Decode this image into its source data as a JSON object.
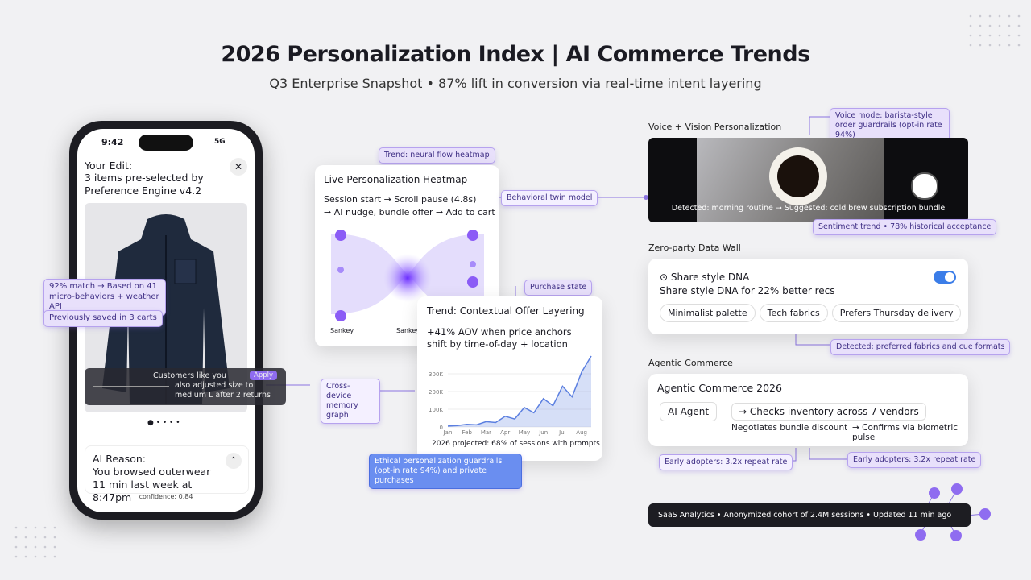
{
  "header": {
    "title": "2026 Personalization Index | AI Commerce Trends",
    "subtitle": "Q3 Enterprise Snapshot • 87% lift in conversion via real-time intent layering"
  },
  "phone": {
    "time": "9:42",
    "network": "5G",
    "edit_title": "Your Edit:",
    "edit_text": "3 items pre-selected by Preference Engine v4.2",
    "match_tag": "92% match → Based on 41 micro-behaviors + weather API",
    "saved_tag": "Previously saved in 3 carts",
    "social_title": "Customers like you",
    "social_text": "also adjusted size to medium L after 2 returns",
    "social_action": "Apply",
    "reason_title": "AI Reason:",
    "reason_text": "You browsed outerwear 11 min last week at 8:47pm",
    "footer": "confidence: 0.84"
  },
  "heatmap": {
    "tag": "Trend: neural flow heatmap",
    "title": "Live Personalization Heatmap",
    "flow_1": "Session start → Scroll pause (4.8s)",
    "flow_2": "→ AI nudge, bundle offer → Add to cart",
    "labels": [
      "Sankey",
      "Sankey"
    ],
    "side_label": "Behavioral twin model"
  },
  "trend": {
    "tag": "Purchase state",
    "title": "Trend: Contextual Offer Layering",
    "text": "+41% AOV when price anchors shift by time-of-day + location",
    "footer": "2026 projected: 68% of sessions with prompts",
    "chart_data": {
      "type": "line",
      "categories": [
        "Jan",
        null,
        "Feb",
        null,
        "Mar",
        null,
        "Apr",
        null,
        "May",
        null,
        "Jun",
        null,
        "Jul",
        null,
        "Aug",
        null
      ],
      "values": [
        5000,
        8000,
        15000,
        12000,
        30000,
        25000,
        60000,
        45000,
        110000,
        80000,
        160000,
        120000,
        230000,
        170000,
        310000,
        400000
      ],
      "color": "#5b7fe0",
      "ylim": [
        0,
        400000
      ],
      "yticks": [
        0,
        {
          "value": 100000,
          "label": "100K"
        },
        {
          "value": 200000,
          "label": "200K"
        },
        {
          "value": 300000,
          "label": "300K"
        }
      ]
    }
  },
  "cross_device": "Cross-device memory graph",
  "ethical": "Ethical personalization guardrails (opt-in rate 94%) and private purchases",
  "voice": {
    "label": "Voice + Vision Personalization",
    "tag": "Voice mode: barista-style order guardrails (opt-in rate 94%)",
    "caption": "Detected: morning routine → Suggested: cold brew subscription bundle",
    "trend_tag": "Sentiment trend • 78% historical acceptance"
  },
  "zero_party": {
    "label": "Zero-party Data Wall",
    "toggle_title": "Share style DNA",
    "toggle_text": "Share style DNA for 22% better recs",
    "chips": [
      "Minimalist palette",
      "Tech fabrics",
      "Prefers Thursday delivery"
    ],
    "tag": "Detected: preferred fabrics and cue formats"
  },
  "agentic": {
    "label": "Agentic Commerce",
    "title": "Agentic Commerce 2026",
    "agent": "AI Agent",
    "steps": [
      "→ Checks inventory across 7 vendors",
      "Negotiates bundle discount",
      "→ Confirms via biometric pulse"
    ],
    "tags": [
      "Early adopters: 3.2x repeat rate",
      "Early adopters: 3.2x repeat rate"
    ]
  },
  "analytics": "SaaS Analytics • Anonymized cohort of 2.4M sessions • Updated 11 min ago"
}
